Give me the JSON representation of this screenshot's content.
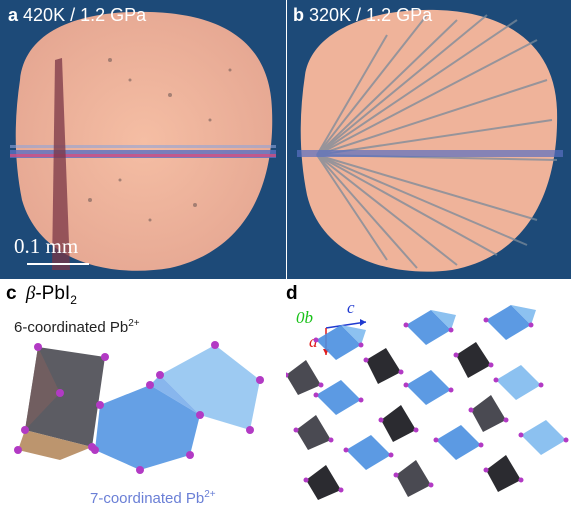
{
  "panel_a": {
    "letter": "a",
    "condition": "420K / 1.2 GPa",
    "scale_bar": "0.1 mm"
  },
  "panel_b": {
    "letter": "b",
    "condition": "320K / 1.2 GPa"
  },
  "panel_c": {
    "letter": "c",
    "title_symbol": "β",
    "title_main": "-PbI",
    "title_sub": "2",
    "label_6": "6-coordinated Pb",
    "label_6_sup": "2+",
    "label_7": "7-coordinated Pb",
    "label_7_sup": "2+"
  },
  "panel_d": {
    "letter": "d",
    "axis_b": "0b",
    "axis_c": "c",
    "axis_a": "a"
  },
  "colors": {
    "background_blue": "#1d4a78",
    "sample": "#efb39a",
    "octahedra_dark": "#4a4a52",
    "octahedra_tan": "#b58a5e",
    "polyhedra_blue": "#4a8fe0",
    "polyhedra_light": "#8cc1f0",
    "atom": "#b23ac4",
    "axis_b": "#19c219",
    "axis_c": "#1f3ad0",
    "axis_a": "#e01c1c",
    "label_7_color": "#6a7fd6"
  }
}
